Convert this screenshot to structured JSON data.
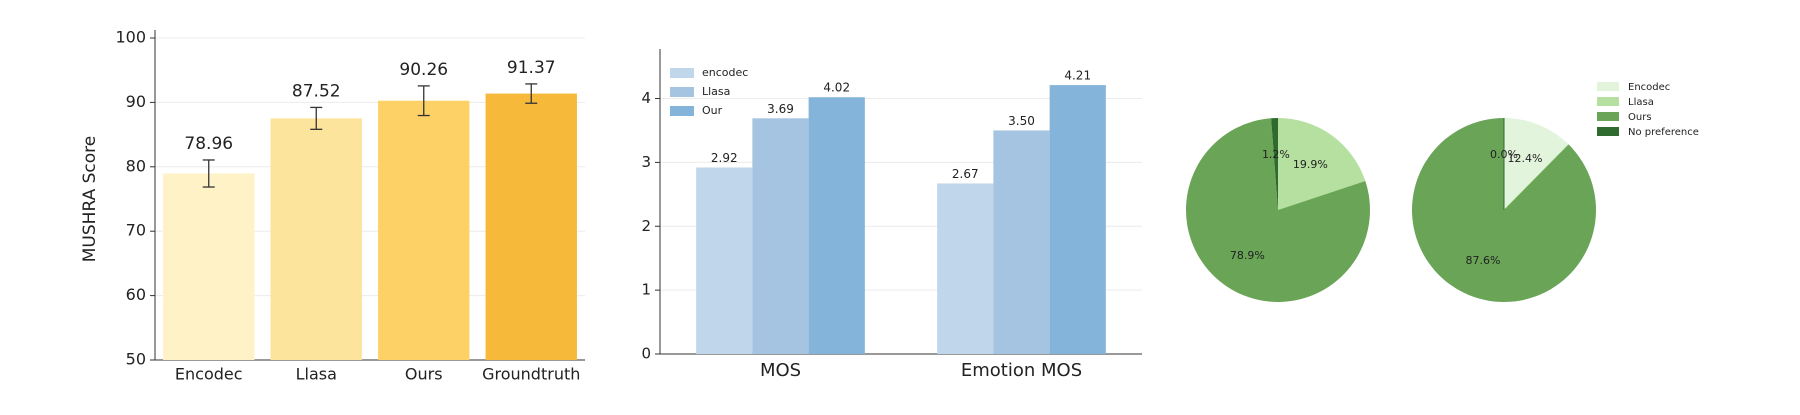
{
  "chart_data": [
    {
      "type": "bar",
      "ylabel": "MUSHRA Score",
      "categories": [
        "Encodec",
        "Llasa",
        "Ours",
        "Groundtruth"
      ],
      "values": [
        78.96,
        87.52,
        90.26,
        91.37
      ],
      "errors": [
        2.1,
        1.7,
        2.3,
        1.5
      ],
      "colors": [
        "#fff2c6",
        "#fde49c",
        "#fdd166",
        "#f6b93a"
      ],
      "ylim": [
        50,
        100
      ],
      "yticks": [
        50,
        60,
        70,
        80,
        90,
        100
      ],
      "grid": true
    },
    {
      "type": "grouped-bar",
      "categories": [
        "MOS",
        "Emotion MOS"
      ],
      "series": [
        {
          "name": "encodec",
          "color": "#c0d6ea",
          "values": [
            2.92,
            2.67
          ]
        },
        {
          "name": "Llasa",
          "color": "#a4c4e2",
          "values": [
            3.69,
            3.5
          ],
          "value_labels": [
            "3.69",
            "3.50"
          ]
        },
        {
          "name": "Our",
          "color": "#84b4da",
          "values": [
            4.02,
            4.21
          ]
        }
      ],
      "ylim": [
        0,
        4.65
      ],
      "yticks": [
        0,
        1,
        2,
        3,
        4
      ],
      "grid": true,
      "legend": "upper left"
    },
    {
      "type": "pie",
      "categories": [
        "Encodec",
        "Llasa",
        "Ours",
        "No preference"
      ],
      "values": [
        0,
        19.9,
        78.9,
        1.2
      ],
      "value_labels": [
        null,
        "19.9%",
        "78.9%",
        "1.2%"
      ],
      "colors": [
        "#e3f4dc",
        "#b6e0a0",
        "#6aa457",
        "#2f6b2f"
      ]
    },
    {
      "type": "pie",
      "categories": [
        "Encodec",
        "Llasa",
        "Ours",
        "No preference"
      ],
      "values": [
        12.4,
        0,
        87.6,
        0
      ],
      "value_labels": [
        "12.4%",
        null,
        "87.6%",
        "0.0%"
      ],
      "colors": [
        "#e3f4dc",
        "#b6e0a0",
        "#6aa457",
        "#2f6b2f"
      ],
      "legend": "upper right"
    }
  ]
}
